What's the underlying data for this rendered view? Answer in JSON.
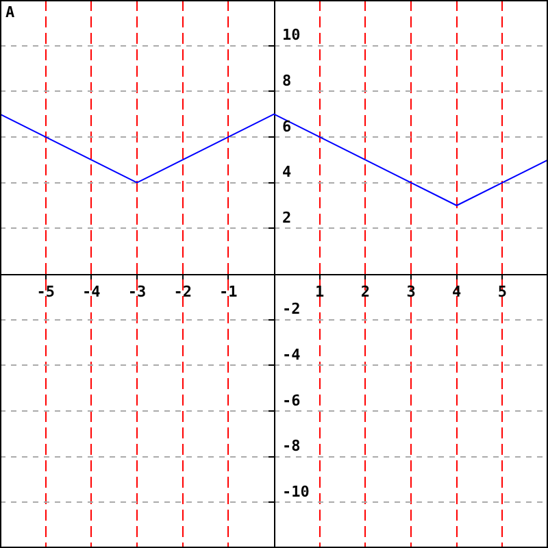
{
  "chart_data": {
    "type": "line",
    "annotations": [
      "A"
    ],
    "x": [
      -6,
      -3,
      0,
      4,
      6
    ],
    "series": [
      {
        "color": "#0000ff",
        "values": [
          7,
          4,
          7,
          3,
          5
        ]
      }
    ],
    "xlim": [
      -6,
      6
    ],
    "ylim": [
      -12,
      12
    ],
    "xticks": [
      -5,
      -4,
      -3,
      -2,
      -1,
      1,
      2,
      3,
      4,
      5
    ],
    "yticks": [
      -10,
      -8,
      -6,
      -4,
      -2,
      2,
      4,
      6,
      8,
      10
    ],
    "grid": true,
    "legend": false,
    "marker": "none",
    "line_style": "solid"
  }
}
